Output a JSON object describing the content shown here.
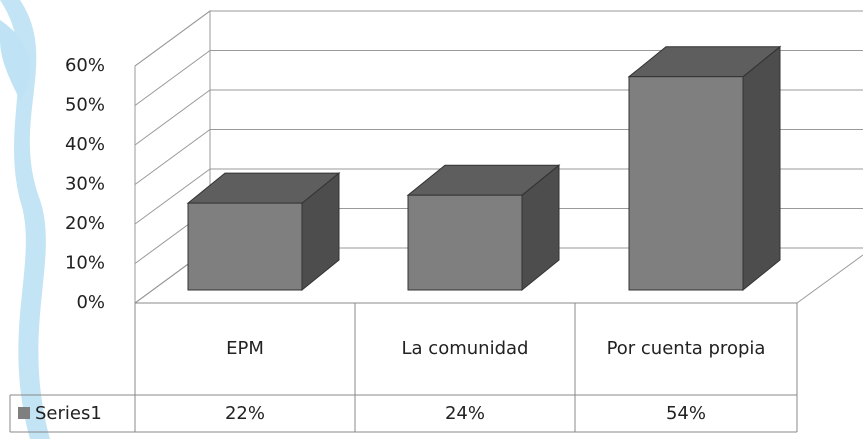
{
  "chart_data": {
    "type": "bar3d",
    "categories": [
      "EPM",
      "La comunidad",
      "Por cuenta propia"
    ],
    "series": [
      {
        "name": "Series1",
        "color": "#7f7f7f",
        "values": [
          22,
          24,
          54
        ],
        "value_labels": [
          "22%",
          "24%",
          "54%"
        ]
      }
    ],
    "ylim": [
      0,
      60
    ],
    "yticks": [
      {
        "value": 0,
        "label": "0%"
      },
      {
        "value": 10,
        "label": "10%"
      },
      {
        "value": 20,
        "label": "20%"
      },
      {
        "value": 30,
        "label": "30%"
      },
      {
        "value": 40,
        "label": "40%"
      },
      {
        "value": 50,
        "label": "50%"
      },
      {
        "value": 60,
        "label": "60%"
      }
    ],
    "grid": true
  }
}
